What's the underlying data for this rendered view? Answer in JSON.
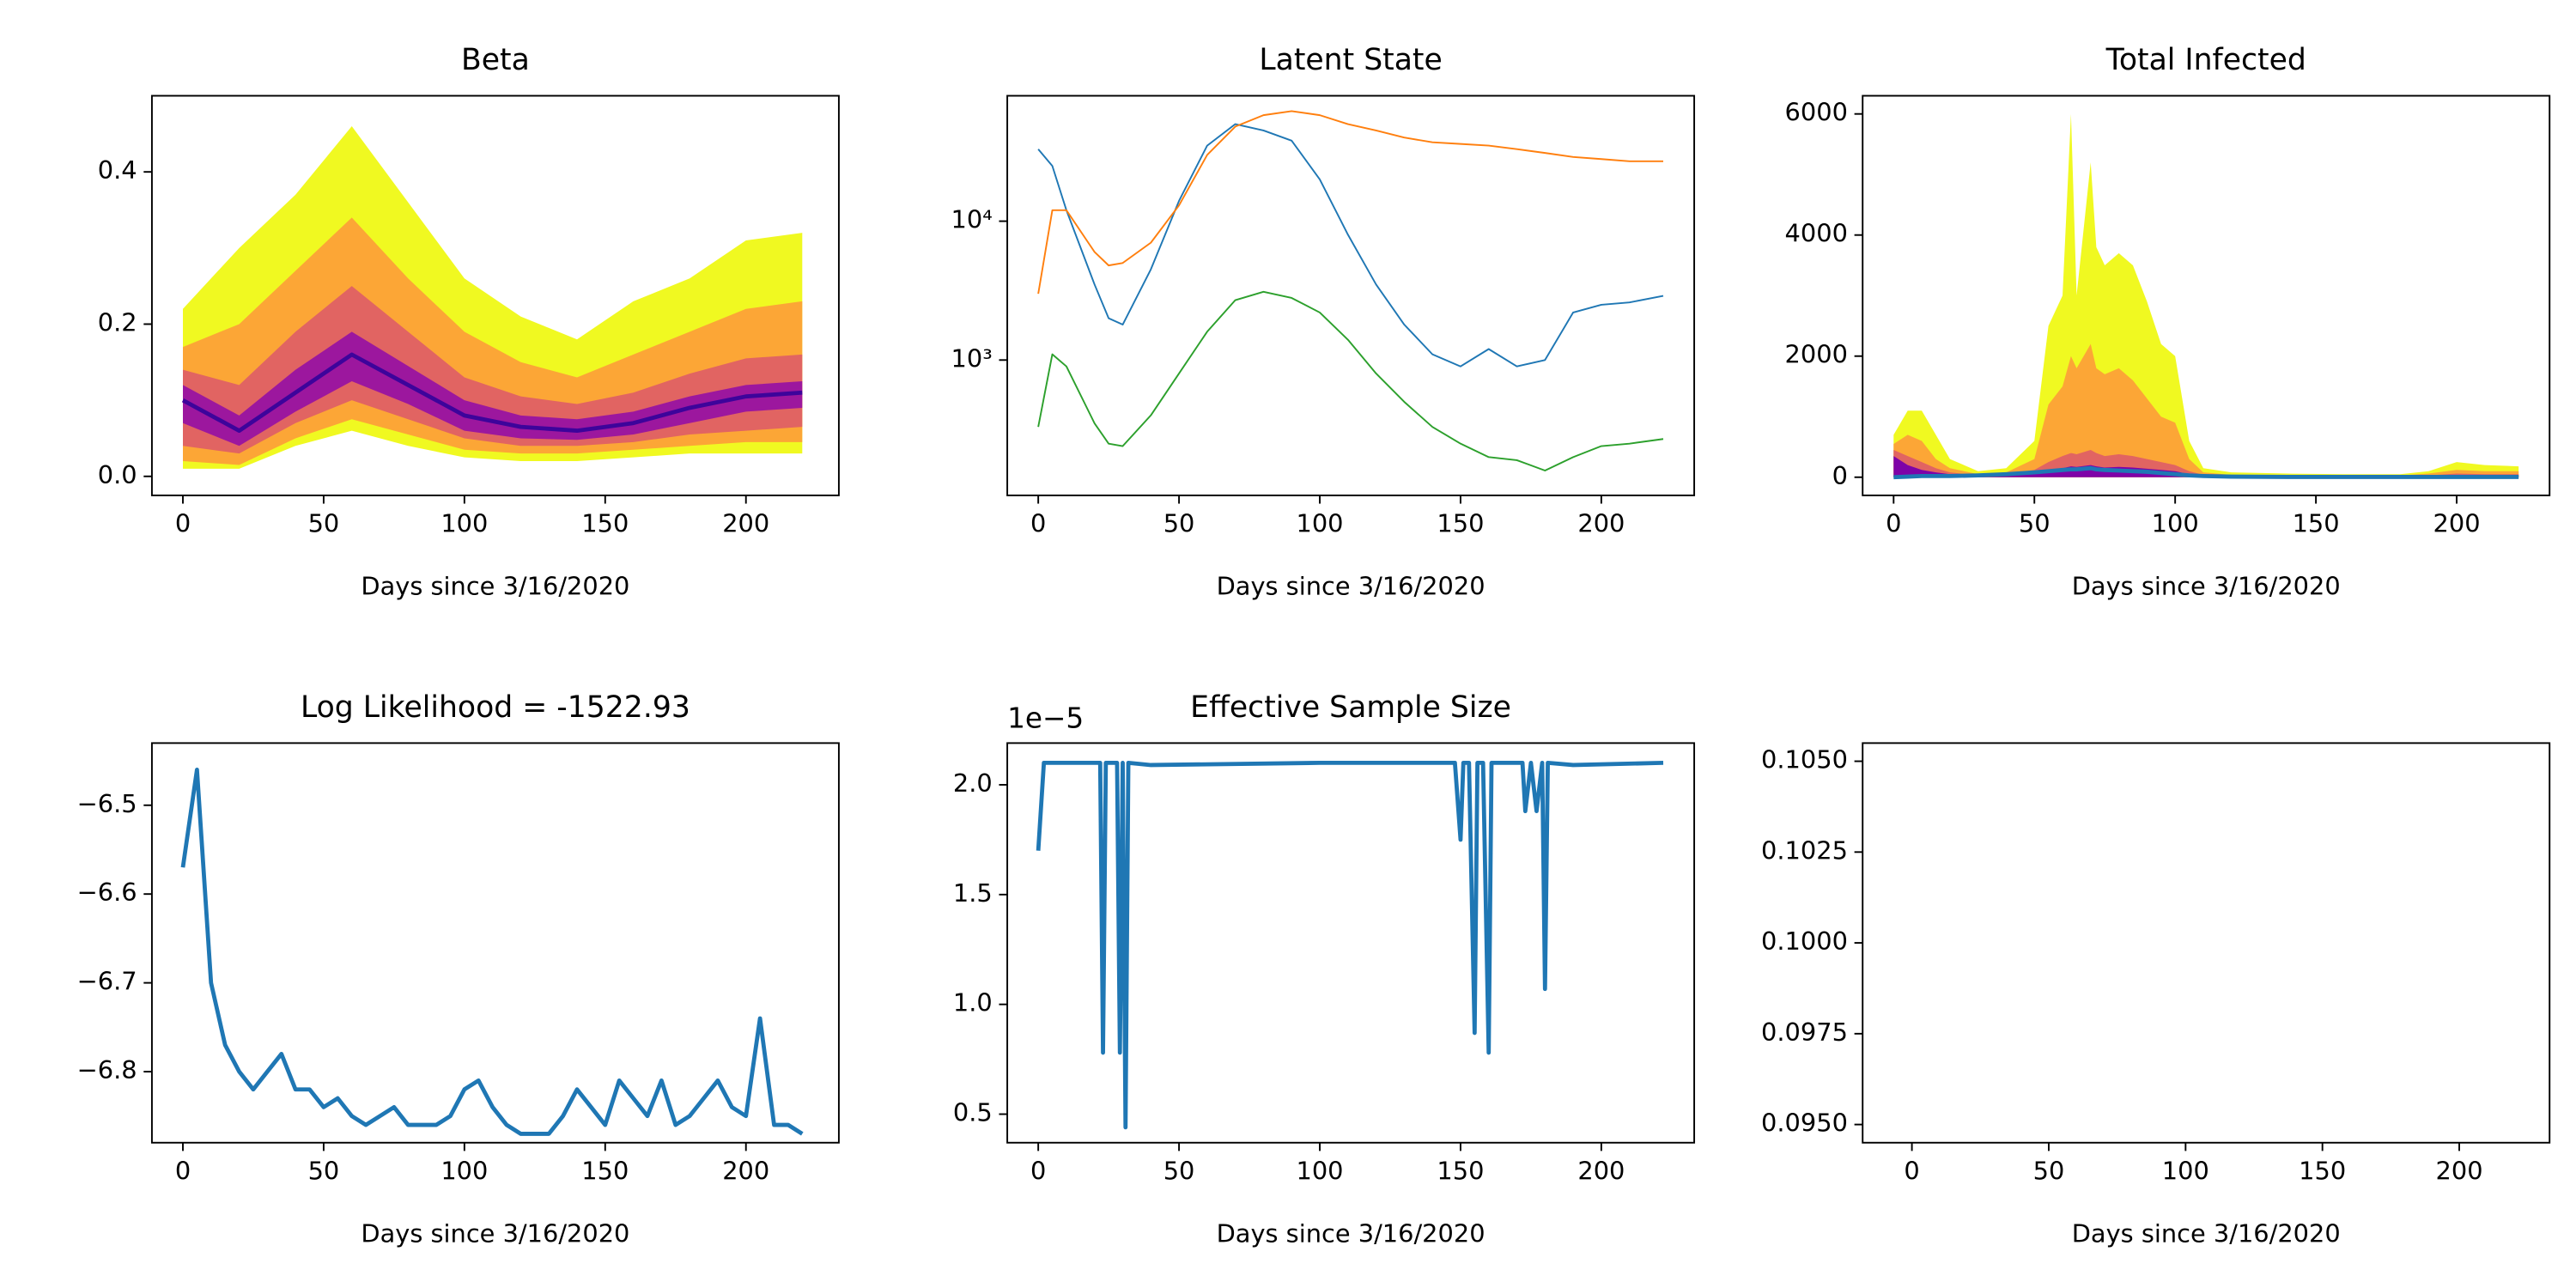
{
  "chart_data": [
    {
      "type": "fan",
      "title": "Beta",
      "xlabel": "Days since 3/16/2020",
      "x": [
        0,
        20,
        40,
        60,
        80,
        100,
        120,
        140,
        160,
        180,
        200,
        220
      ],
      "bands": [
        {
          "color": "#f0f921",
          "upper": [
            0.22,
            0.3,
            0.37,
            0.46,
            0.36,
            0.26,
            0.21,
            0.18,
            0.23,
            0.26,
            0.31,
            0.32
          ],
          "lower": [
            0.01,
            0.01,
            0.04,
            0.06,
            0.04,
            0.025,
            0.02,
            0.02,
            0.025,
            0.03,
            0.03,
            0.03
          ]
        },
        {
          "color": "#fca636",
          "upper": [
            0.17,
            0.2,
            0.27,
            0.34,
            0.26,
            0.19,
            0.15,
            0.13,
            0.16,
            0.19,
            0.22,
            0.23
          ],
          "lower": [
            0.02,
            0.015,
            0.05,
            0.075,
            0.055,
            0.035,
            0.03,
            0.03,
            0.035,
            0.04,
            0.045,
            0.045
          ]
        },
        {
          "color": "#e16462",
          "upper": [
            0.14,
            0.12,
            0.19,
            0.25,
            0.19,
            0.13,
            0.105,
            0.095,
            0.11,
            0.135,
            0.155,
            0.16
          ],
          "lower": [
            0.04,
            0.03,
            0.07,
            0.1,
            0.075,
            0.05,
            0.04,
            0.04,
            0.045,
            0.055,
            0.06,
            0.065
          ]
        },
        {
          "color": "#9c179e",
          "upper": [
            0.12,
            0.08,
            0.14,
            0.19,
            0.145,
            0.1,
            0.08,
            0.075,
            0.085,
            0.105,
            0.12,
            0.125
          ],
          "lower": [
            0.07,
            0.04,
            0.085,
            0.125,
            0.095,
            0.06,
            0.05,
            0.048,
            0.055,
            0.07,
            0.085,
            0.09
          ]
        }
      ],
      "series": [
        {
          "color": "#3d049b",
          "values": [
            0.1,
            0.06,
            0.11,
            0.16,
            0.12,
            0.08,
            0.065,
            0.06,
            0.07,
            0.09,
            0.105,
            0.11
          ]
        }
      ],
      "xlim": [
        -11,
        233
      ],
      "xticks": [
        0,
        50,
        100,
        150,
        200
      ],
      "ylim": [
        -0.025,
        0.5
      ],
      "yticks": [
        {
          "value": 0,
          "label": "0.0"
        },
        {
          "value": 0.2,
          "label": "0.2"
        },
        {
          "value": 0.4,
          "label": "0.4"
        }
      ]
    },
    {
      "type": "line",
      "title": "Latent State",
      "xlabel": "Days since 3/16/2020",
      "log_scale": true,
      "line_width": 1,
      "x": [
        0,
        5,
        10,
        20,
        25,
        30,
        40,
        50,
        60,
        70,
        80,
        90,
        100,
        110,
        120,
        130,
        140,
        150,
        160,
        170,
        180,
        190,
        200,
        210,
        222
      ],
      "series": [
        {
          "color": "#1f77b4",
          "values": [
            33000,
            25000,
            12000,
            3500,
            2000,
            1800,
            4500,
            14000,
            35000,
            50000,
            45000,
            38000,
            20000,
            8000,
            3500,
            1800,
            1100,
            900,
            1200,
            900,
            1000,
            2200,
            2500,
            2600,
            2900
          ]
        },
        {
          "color": "#ff7f0e",
          "values": [
            3000,
            12000,
            12000,
            6000,
            4800,
            5000,
            7000,
            13000,
            30000,
            48000,
            58000,
            62000,
            58000,
            50000,
            45000,
            40000,
            37000,
            36000,
            35000,
            33000,
            31000,
            29000,
            28000,
            27000,
            27000
          ]
        },
        {
          "color": "#2ca02c",
          "values": [
            330,
            1100,
            900,
            350,
            250,
            240,
            400,
            800,
            1600,
            2700,
            3100,
            2800,
            2200,
            1400,
            800,
            500,
            330,
            250,
            200,
            190,
            160,
            200,
            240,
            250,
            270
          ]
        }
      ],
      "xlim": [
        -11,
        233
      ],
      "xticks": [
        0,
        50,
        100,
        150,
        200
      ],
      "ylim": [
        106,
        80000
      ],
      "yticks": [
        {
          "value": 1000,
          "label": "10³"
        },
        {
          "value": 10000,
          "label": "10⁴"
        }
      ]
    },
    {
      "type": "fan",
      "title": "Total Infected",
      "xlabel": "Days since 3/16/2020",
      "x": [
        0,
        5,
        10,
        15,
        20,
        30,
        40,
        50,
        55,
        60,
        63,
        65,
        70,
        72,
        75,
        80,
        85,
        90,
        95,
        100,
        105,
        110,
        120,
        140,
        160,
        180,
        190,
        200,
        210,
        222
      ],
      "bands": [
        {
          "color": "#f0f921",
          "upper": [
            700,
            1100,
            1100,
            700,
            300,
            100,
            150,
            600,
            2500,
            3000,
            6000,
            3000,
            5200,
            3800,
            3500,
            3700,
            3500,
            2900,
            2200,
            2000,
            600,
            150,
            80,
            60,
            50,
            50,
            100,
            250,
            200,
            180
          ]
        },
        {
          "color": "#fca636",
          "upper": [
            550,
            700,
            600,
            300,
            150,
            50,
            80,
            300,
            1200,
            1500,
            2000,
            1800,
            2200,
            1800,
            1700,
            1800,
            1600,
            1300,
            1000,
            900,
            300,
            80,
            40,
            30,
            30,
            30,
            60,
            120,
            100,
            100
          ]
        },
        {
          "color": "#e16462",
          "upper": [
            450,
            350,
            250,
            150,
            80,
            30,
            50,
            120,
            250,
            350,
            400,
            380,
            450,
            400,
            350,
            380,
            350,
            300,
            250,
            200,
            100,
            40,
            20,
            15,
            15,
            15,
            30,
            60,
            50,
            50
          ]
        },
        {
          "color": "#7e03a8",
          "upper": [
            350,
            200,
            120,
            80,
            50,
            20,
            30,
            60,
            120,
            150,
            180,
            170,
            200,
            180,
            160,
            170,
            160,
            140,
            120,
            100,
            50,
            20,
            10,
            10,
            10,
            10,
            15,
            30,
            25,
            25
          ]
        }
      ],
      "series": [
        {
          "color": "#1f77b4",
          "values": [
            0,
            10,
            20,
            20,
            20,
            30,
            50,
            80,
            100,
            120,
            130,
            130,
            150,
            130,
            120,
            110,
            100,
            90,
            70,
            50,
            30,
            20,
            10,
            5,
            5,
            5,
            5,
            5,
            5,
            5
          ]
        }
      ],
      "xlim": [
        -11,
        233
      ],
      "xticks": [
        0,
        50,
        100,
        150,
        200
      ],
      "ylim": [
        -300,
        6300
      ],
      "yticks": [
        0,
        2000,
        4000,
        6000
      ]
    },
    {
      "type": "line",
      "title": "Log Likelihood = -1522.93",
      "xlabel": "Days since 3/16/2020",
      "x": [
        0,
        5,
        10,
        15,
        20,
        25,
        30,
        35,
        40,
        45,
        50,
        55,
        60,
        65,
        70,
        75,
        80,
        85,
        90,
        95,
        100,
        105,
        110,
        115,
        120,
        125,
        130,
        135,
        140,
        145,
        150,
        155,
        160,
        165,
        170,
        175,
        180,
        185,
        190,
        195,
        200,
        205,
        210,
        215,
        220
      ],
      "series": [
        {
          "color": "#1f77b4",
          "values": [
            -6.57,
            -6.46,
            -6.7,
            -6.77,
            -6.8,
            -6.82,
            -6.8,
            -6.78,
            -6.82,
            -6.82,
            -6.84,
            -6.83,
            -6.85,
            -6.86,
            -6.85,
            -6.84,
            -6.86,
            -6.86,
            -6.86,
            -6.85,
            -6.82,
            -6.81,
            -6.84,
            -6.86,
            -6.87,
            -6.87,
            -6.87,
            -6.85,
            -6.82,
            -6.84,
            -6.86,
            -6.81,
            -6.83,
            -6.85,
            -6.81,
            -6.86,
            -6.85,
            -6.83,
            -6.81,
            -6.84,
            -6.85,
            -6.74,
            -6.86,
            -6.86,
            -6.87
          ]
        }
      ],
      "xlim": [
        -11,
        233
      ],
      "xticks": [
        0,
        50,
        100,
        150,
        200
      ],
      "ylim": [
        -6.88,
        -6.43
      ],
      "yticks": [
        {
          "value": -6.5,
          "label": "−6.5"
        },
        {
          "value": -6.6,
          "label": "−6.6"
        },
        {
          "value": -6.7,
          "label": "−6.7"
        },
        {
          "value": -6.8,
          "label": "−6.8"
        }
      ]
    },
    {
      "type": "line",
      "title": "Effective Sample Size",
      "xlabel": "Days since 3/16/2020",
      "offset_label": "1e−5",
      "x": [
        0,
        2,
        20,
        22,
        23,
        24,
        26,
        28,
        29,
        30,
        31,
        32,
        40,
        100,
        148,
        150,
        151,
        153,
        155,
        156,
        158,
        160,
        161,
        162,
        163,
        165,
        172,
        173,
        175,
        177,
        179,
        180,
        181,
        190,
        222
      ],
      "series": [
        {
          "color": "#1f77b4",
          "values": [
            1.7,
            2.1,
            2.1,
            2.1,
            0.78,
            2.1,
            2.1,
            2.1,
            0.78,
            2.1,
            0.44,
            2.1,
            2.09,
            2.1,
            2.1,
            1.75,
            2.1,
            2.1,
            0.87,
            2.1,
            2.1,
            0.78,
            2.1,
            2.1,
            2.1,
            2.1,
            2.1,
            1.88,
            2.1,
            1.88,
            2.1,
            1.07,
            2.1,
            2.09,
            2.1
          ]
        }
      ],
      "xlim": [
        -11,
        233
      ],
      "xticks": [
        0,
        50,
        100,
        150,
        200
      ],
      "ylim": [
        0.37,
        2.19
      ],
      "yticks": [
        {
          "value": 0.5,
          "label": "0.5"
        },
        {
          "value": 1.0,
          "label": "1.0"
        },
        {
          "value": 1.5,
          "label": "1.5"
        },
        {
          "value": 2.0,
          "label": "2.0"
        }
      ]
    },
    {
      "type": "empty",
      "xlabel": "Days since 3/16/2020",
      "xlim": [
        -18,
        233
      ],
      "xticks": [
        0,
        50,
        100,
        150,
        200
      ],
      "ylim": [
        0.0945,
        0.1055
      ],
      "yticks": [
        {
          "value": 0.095,
          "label": "0.0950"
        },
        {
          "value": 0.0975,
          "label": "0.0975"
        },
        {
          "value": 0.1,
          "label": "0.1000"
        },
        {
          "value": 0.1025,
          "label": "0.1025"
        },
        {
          "value": 0.105,
          "label": "0.1050"
        }
      ]
    }
  ]
}
